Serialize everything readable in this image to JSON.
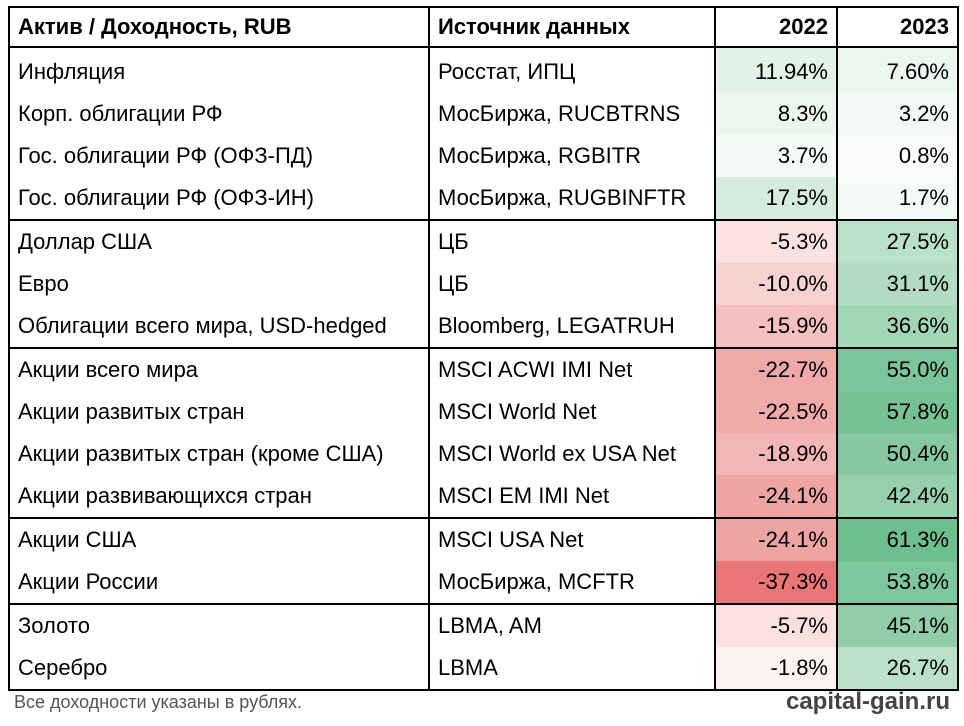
{
  "header": {
    "asset": "Актив / Доходность, RUB",
    "source": "Источник данных",
    "y2022": "2022",
    "y2023": "2023"
  },
  "rows": [
    {
      "asset": "Инфляция",
      "source": "Росстат, ИПЦ",
      "y2022": "11.94%",
      "y2023": "7.60%",
      "c2022": "#e3f2e9",
      "c2023": "#ebf6ef",
      "group_start": true
    },
    {
      "asset": "Корп. облигации РФ",
      "source": "МосБиржа, RUCBTRNS",
      "y2022": "8.3%",
      "y2023": "3.2%",
      "c2022": "#ebf6ef",
      "c2023": "#f3faf5",
      "group_start": false
    },
    {
      "asset": "Гос. облигации РФ (ОФЗ-ПД)",
      "source": "МосБиржа, RGBITR",
      "y2022": "3.7%",
      "y2023": "0.8%",
      "c2022": "#f5fbf7",
      "c2023": "#f9fcfa",
      "group_start": false
    },
    {
      "asset": "Гос. облигации РФ (ОФЗ-ИН)",
      "source": "МосБиржа, RUGBINFTR",
      "y2022": "17.5%",
      "y2023": "1.7%",
      "c2022": "#d5ecde",
      "c2023": "#f5fbf7",
      "group_start": false
    },
    {
      "asset": "Доллар США",
      "source": "ЦБ",
      "y2022": "-5.3%",
      "y2023": "27.5%",
      "c2022": "#fbe2e2",
      "c2023": "#b9e0c8",
      "group_start": true
    },
    {
      "asset": "Евро",
      "source": "ЦБ",
      "y2022": "-10.0%",
      "y2023": "31.1%",
      "c2022": "#f8d1d1",
      "c2023": "#b1dcc2",
      "group_start": false
    },
    {
      "asset": "Облигации всего мира, USD-hedged",
      "source": "Bloomberg, LEGATRUH",
      "y2022": "-15.9%",
      "y2023": "36.6%",
      "c2022": "#f4c0c0",
      "c2023": "#a3d6b6",
      "group_start": false
    },
    {
      "asset": "Акции всего мира",
      "source": "MSCI ACWI IMI Net",
      "y2022": "-22.7%",
      "y2023": "55.0%",
      "c2022": "#f0a9a9",
      "c2023": "#7cc59a",
      "group_start": true
    },
    {
      "asset": "Акции развитых стран",
      "source": "MSCI World Net",
      "y2022": "-22.5%",
      "y2023": "57.8%",
      "c2022": "#f0aaaa",
      "c2023": "#76c295",
      "group_start": false
    },
    {
      "asset": "Акции развитых стран (кроме США)",
      "source": "MSCI World ex USA Net",
      "y2022": "-18.9%",
      "y2023": "50.4%",
      "c2022": "#f2b6b6",
      "c2023": "#86c9a1",
      "group_start": false
    },
    {
      "asset": "Акции развивающихся стран",
      "source": "MSCI EM IMI Net",
      "y2022": "-24.1%",
      "y2023": "42.4%",
      "c2022": "#efa4a4",
      "c2023": "#97d0ad",
      "group_start": false
    },
    {
      "asset": "Акции США",
      "source": "MSCI USA Net",
      "y2022": "-24.1%",
      "y2023": "61.3%",
      "c2022": "#efa4a4",
      "c2023": "#6ebe8e",
      "group_start": true
    },
    {
      "asset": "Акции России",
      "source": "МосБиржа, MCFTR",
      "y2022": "-37.3%",
      "y2023": "53.8%",
      "c2022": "#e87676",
      "c2023": "#7ec69b",
      "group_start": false
    },
    {
      "asset": "Золото",
      "source": "LBMA, AM",
      "y2022": "-5.7%",
      "y2023": "45.1%",
      "c2022": "#fbe0e0",
      "c2023": "#90cda8",
      "group_start": true
    },
    {
      "asset": "Серебро",
      "source": "LBMA",
      "y2022": "-1.8%",
      "y2023": "26.7%",
      "c2022": "#fdf2f2",
      "c2023": "#bbe1ca",
      "group_start": false
    }
  ],
  "footer": {
    "note": "Все доходности указаны в рублях.",
    "site": "capital-gain.ru"
  }
}
